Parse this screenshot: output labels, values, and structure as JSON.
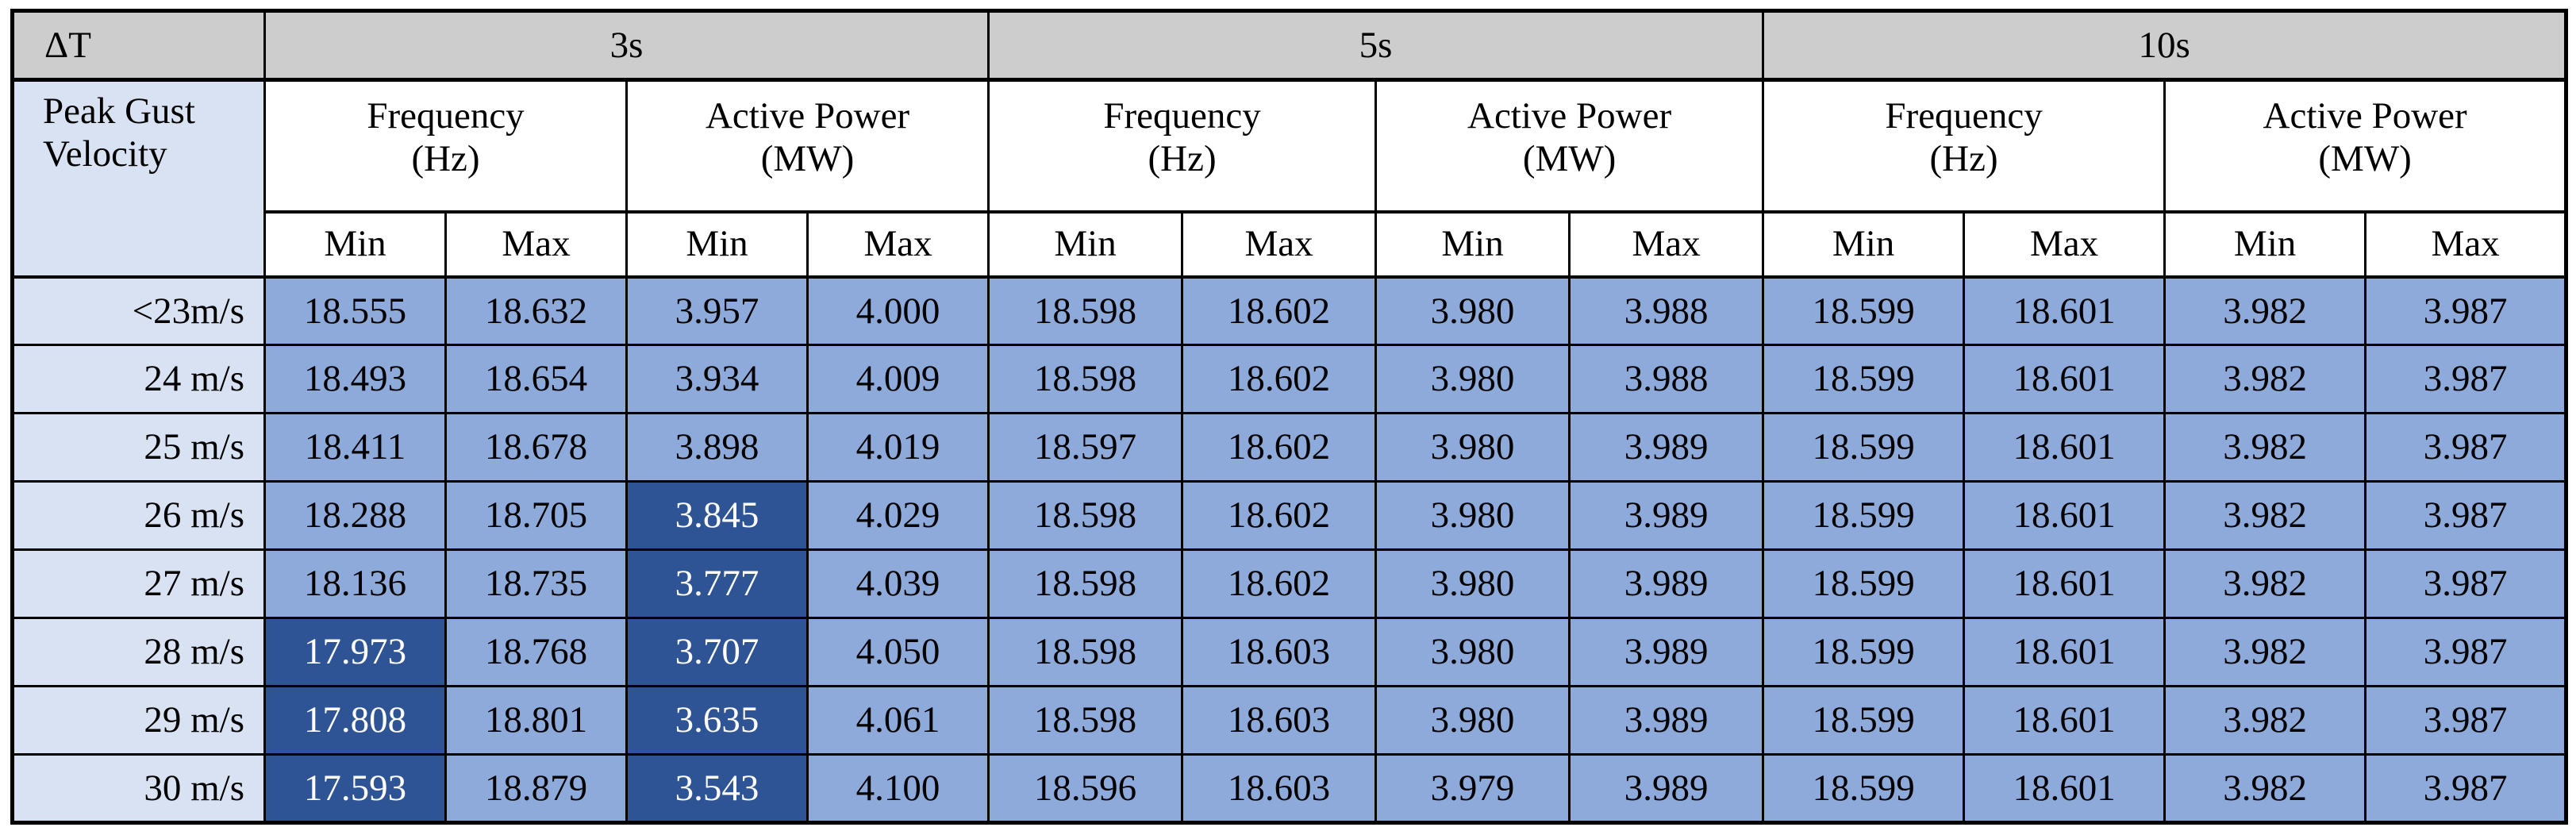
{
  "colors": {
    "header_gray": "#CDCDCD",
    "row_label_blue": "#D9E2F3",
    "cell_blue": "#8EAADB",
    "cell_dark_blue": "#2F5496",
    "border_black": "#000000",
    "text_black": "#000000",
    "text_white": "#FFFFFF"
  },
  "header": {
    "delta_t_label": "ΔT",
    "row_header_label": "Peak Gust Velocity",
    "min_label": "Min",
    "max_label": "Max",
    "groups": [
      {
        "label": "3s",
        "metrics": [
          {
            "name": "Frequency",
            "unit": "(Hz)"
          },
          {
            "name": "Active Power",
            "unit": "(MW)"
          }
        ]
      },
      {
        "label": "5s",
        "metrics": [
          {
            "name": "Frequency",
            "unit": "(Hz)"
          },
          {
            "name": "Active Power",
            "unit": "(MW)"
          }
        ]
      },
      {
        "label": "10s",
        "metrics": [
          {
            "name": "Frequency",
            "unit": "(Hz)"
          },
          {
            "name": "Active Power",
            "unit": "(MW)"
          }
        ]
      }
    ]
  },
  "rows": [
    {
      "label": "<23m/s",
      "values": [
        "18.555",
        "18.632",
        "3.957",
        "4.000",
        "18.598",
        "18.602",
        "3.980",
        "3.988",
        "18.599",
        "18.601",
        "3.982",
        "3.987"
      ],
      "dark_cells": []
    },
    {
      "label": "24 m/s",
      "values": [
        "18.493",
        "18.654",
        "3.934",
        "4.009",
        "18.598",
        "18.602",
        "3.980",
        "3.988",
        "18.599",
        "18.601",
        "3.982",
        "3.987"
      ],
      "dark_cells": []
    },
    {
      "label": "25 m/s",
      "values": [
        "18.411",
        "18.678",
        "3.898",
        "4.019",
        "18.597",
        "18.602",
        "3.980",
        "3.989",
        "18.599",
        "18.601",
        "3.982",
        "3.987"
      ],
      "dark_cells": []
    },
    {
      "label": "26 m/s",
      "values": [
        "18.288",
        "18.705",
        "3.845",
        "4.029",
        "18.598",
        "18.602",
        "3.980",
        "3.989",
        "18.599",
        "18.601",
        "3.982",
        "3.987"
      ],
      "dark_cells": [
        2
      ]
    },
    {
      "label": "27 m/s",
      "values": [
        "18.136",
        "18.735",
        "3.777",
        "4.039",
        "18.598",
        "18.602",
        "3.980",
        "3.989",
        "18.599",
        "18.601",
        "3.982",
        "3.987"
      ],
      "dark_cells": [
        2
      ]
    },
    {
      "label": "28 m/s",
      "values": [
        "17.973",
        "18.768",
        "3.707",
        "4.050",
        "18.598",
        "18.603",
        "3.980",
        "3.989",
        "18.599",
        "18.601",
        "3.982",
        "3.987"
      ],
      "dark_cells": [
        0,
        2
      ]
    },
    {
      "label": "29 m/s",
      "values": [
        "17.808",
        "18.801",
        "3.635",
        "4.061",
        "18.598",
        "18.603",
        "3.980",
        "3.989",
        "18.599",
        "18.601",
        "3.982",
        "3.987"
      ],
      "dark_cells": [
        0,
        2
      ]
    },
    {
      "label": "30 m/s",
      "values": [
        "17.593",
        "18.879",
        "3.543",
        "4.100",
        "18.596",
        "18.603",
        "3.979",
        "3.989",
        "18.599",
        "18.601",
        "3.982",
        "3.987"
      ],
      "dark_cells": [
        0,
        2
      ]
    }
  ]
}
